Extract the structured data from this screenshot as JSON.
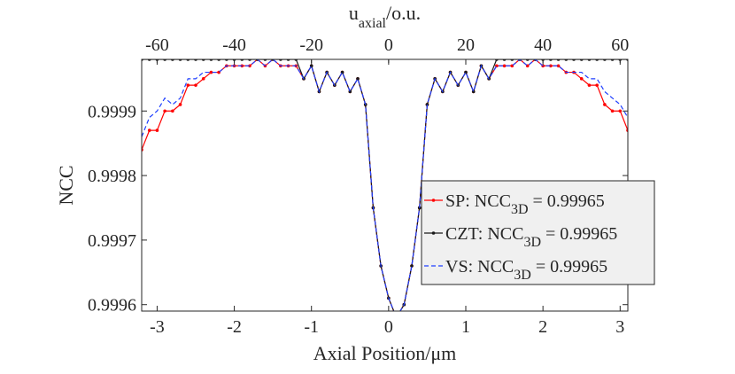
{
  "chart_data": {
    "type": "line",
    "xlabel": "Axial Position/μm",
    "ylabel": "NCC",
    "top_xlabel": {
      "base": "u",
      "sub": "axial",
      "rest": "/o.u."
    },
    "xlim": [
      -3.2,
      3.1
    ],
    "ylim": [
      0.99959,
      0.99998
    ],
    "top_xlim": [
      -64,
      62
    ],
    "xticks": [
      -3,
      -2,
      -1,
      0,
      1,
      2,
      3
    ],
    "xtick_labels": [
      "-3",
      "-2",
      "-1",
      "0",
      "1",
      "2",
      "3"
    ],
    "top_xticks": [
      -60,
      -40,
      -20,
      0,
      20,
      40,
      60
    ],
    "top_xtick_labels": [
      "-60",
      "-40",
      "-20",
      "0",
      "20",
      "40",
      "60"
    ],
    "yticks": [
      0.9996,
      0.9997,
      0.9998,
      0.9999
    ],
    "ytick_labels": [
      "0.9996",
      "0.9997",
      "0.9998",
      "0.9999"
    ],
    "grid": false,
    "legend_placement": "center-right",
    "x": [
      -3.2,
      -3.1,
      -3.0,
      -2.9,
      -2.8,
      -2.7,
      -2.6,
      -2.5,
      -2.4,
      -2.3,
      -2.2,
      -2.1,
      -2.0,
      -1.9,
      -1.8,
      -1.7,
      -1.6,
      -1.5,
      -1.4,
      -1.3,
      -1.2,
      -1.1,
      -1.0,
      -0.9,
      -0.8,
      -0.7,
      -0.6,
      -0.5,
      -0.4,
      -0.3,
      -0.2,
      -0.1,
      0.0,
      0.1,
      0.2,
      0.3,
      0.4,
      0.5,
      0.6,
      0.7,
      0.8,
      0.9,
      1.0,
      1.1,
      1.2,
      1.3,
      1.4,
      1.5,
      1.6,
      1.7,
      1.8,
      1.9,
      2.0,
      2.1,
      2.2,
      2.3,
      2.4,
      2.5,
      2.6,
      2.7,
      2.8,
      2.9,
      3.0,
      3.1
    ],
    "series": [
      {
        "name": "SP",
        "legend_label": "SP: NCC",
        "legend_sub": "3D",
        "legend_value": " = 0.99965",
        "color": "#ff0000",
        "dash": "",
        "marker": "dot",
        "values": [
          0.99984,
          0.99987,
          0.99987,
          0.9999,
          0.9999,
          0.99991,
          0.99994,
          0.99994,
          0.99995,
          0.99996,
          0.99996,
          0.99997,
          0.99997,
          0.99997,
          0.99997,
          0.99998,
          0.99997,
          0.99998,
          0.99997,
          0.99997,
          0.99997,
          0.99995,
          0.99997,
          0.99993,
          0.99996,
          0.99994,
          0.99996,
          0.99993,
          0.99995,
          0.99991,
          0.99975,
          0.99966,
          0.99961,
          0.99958,
          0.9996,
          0.99966,
          0.99975,
          0.99991,
          0.99995,
          0.99993,
          0.99996,
          0.99994,
          0.99996,
          0.99993,
          0.99997,
          0.99995,
          0.99997,
          0.99997,
          0.99997,
          0.99998,
          0.99997,
          0.99998,
          0.99997,
          0.99997,
          0.99997,
          0.99996,
          0.99996,
          0.99995,
          0.99994,
          0.99994,
          0.99991,
          0.9999,
          0.9999,
          0.99987
        ]
      },
      {
        "name": "CZT",
        "legend_label": "CZT: NCC",
        "legend_sub": "3D",
        "legend_value": " = 0.99965",
        "color": "#1a1a1a",
        "dash": "",
        "marker": "dot",
        "values": [
          0.99998,
          0.99998,
          0.99998,
          0.99998,
          0.99998,
          0.99998,
          0.99998,
          0.99998,
          0.99998,
          0.99998,
          0.99998,
          0.99998,
          0.99998,
          0.99998,
          0.99998,
          0.99998,
          0.99998,
          0.99998,
          0.99998,
          0.99998,
          0.99998,
          0.99995,
          0.99997,
          0.99993,
          0.99996,
          0.99994,
          0.99996,
          0.99993,
          0.99995,
          0.99991,
          0.99975,
          0.99966,
          0.99961,
          0.99958,
          0.9996,
          0.99966,
          0.99975,
          0.99991,
          0.99995,
          0.99993,
          0.99996,
          0.99994,
          0.99996,
          0.99993,
          0.99997,
          0.99995,
          0.99998,
          0.99998,
          0.99998,
          0.99998,
          0.99998,
          0.99998,
          0.99998,
          0.99998,
          0.99998,
          0.99998,
          0.99998,
          0.99998,
          0.99998,
          0.99998,
          0.99998,
          0.99998,
          0.99998,
          0.99998
        ]
      },
      {
        "name": "VS",
        "legend_label": "VS: NCC",
        "legend_sub": "3D",
        "legend_value": " = 0.99965",
        "color": "#1f3fff",
        "dash": "5,3",
        "marker": "none",
        "values": [
          0.99986,
          0.99989,
          0.9999,
          0.99992,
          0.99991,
          0.99992,
          0.99995,
          0.99995,
          0.99996,
          0.99996,
          0.99996,
          0.99997,
          0.99997,
          0.99997,
          0.99997,
          0.99998,
          0.99997,
          0.99998,
          0.99997,
          0.99997,
          0.99997,
          0.99995,
          0.99997,
          0.99993,
          0.99996,
          0.99994,
          0.99996,
          0.99993,
          0.99995,
          0.99991,
          0.99975,
          0.99966,
          0.99961,
          0.99958,
          0.9996,
          0.99966,
          0.99975,
          0.99991,
          0.99995,
          0.99993,
          0.99996,
          0.99994,
          0.99996,
          0.99993,
          0.99997,
          0.99995,
          0.99997,
          0.99997,
          0.99997,
          0.99998,
          0.99997,
          0.99998,
          0.99997,
          0.99997,
          0.99997,
          0.99996,
          0.99996,
          0.99996,
          0.99995,
          0.99995,
          0.99993,
          0.99992,
          0.99991,
          0.99989
        ]
      }
    ]
  }
}
